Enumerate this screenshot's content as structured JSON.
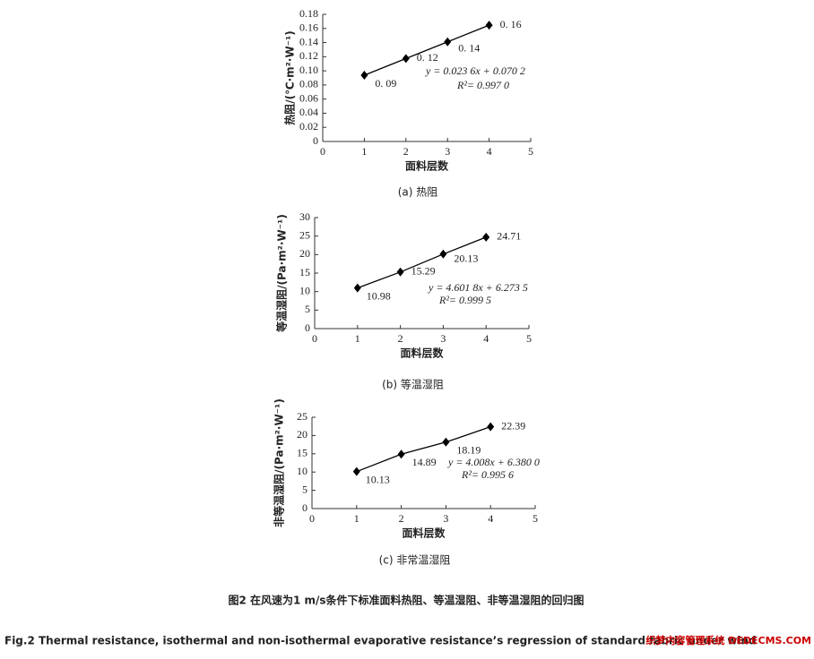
{
  "chart_data": [
    {
      "type": "line",
      "y_label": "热阻/(℃·m²·W⁻¹)",
      "x_label": "面料层数",
      "caption": "(a) 热阻",
      "x": [
        1,
        2,
        3,
        4
      ],
      "series": [
        {
          "name": "热阻",
          "color": "#000000",
          "values": [
            0.0938,
            0.1174,
            0.141,
            0.1646
          ],
          "value_labels": [
            "0. 09",
            "0. 12",
            "0. 14",
            "0. 16"
          ]
        }
      ],
      "xlim": [
        0,
        5
      ],
      "xticks": [
        0,
        1,
        2,
        3,
        4,
        5
      ],
      "ylim": [
        0,
        0.18
      ],
      "yticks": [
        0,
        0.02,
        0.04,
        0.06,
        0.08,
        {
          "value": 0.1,
          "label": "0.10"
        },
        0.12,
        0.14,
        0.16,
        0.18
      ],
      "equation": "y = 0.023 6x + 0.070 2",
      "r_squared": "R²= 0.997 0"
    },
    {
      "type": "line",
      "y_label": "等温湿阻/(Pa·m²·W⁻¹)",
      "x_label": "面料层数",
      "caption": "(b) 等温湿阻",
      "x": [
        1,
        2,
        3,
        4
      ],
      "series": [
        {
          "name": "等温湿阻",
          "color": "#000000",
          "values": [
            10.98,
            15.29,
            20.13,
            24.71
          ]
        }
      ],
      "xlim": [
        0,
        5
      ],
      "xticks": [
        0,
        1,
        2,
        3,
        4,
        5
      ],
      "ylim": [
        0,
        30
      ],
      "yticks": [
        0,
        5,
        10,
        15,
        20,
        25,
        30
      ],
      "equation": "y = 4.601 8x + 6.273 5",
      "r_squared": "R²= 0.999 5"
    },
    {
      "type": "line",
      "y_label": "非等温湿阻/(Pa·m²·W⁻¹)",
      "x_label": "面料层数",
      "caption": "(c) 非常温湿阻",
      "x": [
        1,
        2,
        3,
        4
      ],
      "series": [
        {
          "name": "非等温湿阻",
          "color": "#000000",
          "values": [
            10.13,
            14.89,
            18.19,
            22.39
          ]
        }
      ],
      "xlim": [
        0,
        5
      ],
      "xticks": [
        0,
        1,
        2,
        3,
        4,
        5
      ],
      "ylim": [
        0,
        25
      ],
      "yticks": [
        0,
        5,
        10,
        15,
        20,
        25
      ],
      "equation": "y = 4.008x + 6.380 0",
      "r_squared": "R²= 0.995 6"
    }
  ],
  "figure_caption_cn": "图2 在风速为1 m/s条件下标准面料热阻、等温湿阻、非等温湿阻的回归图",
  "figure_caption_en": "Fig.2 Thermal resistance, isothermal and non-isothermal evaporative resistance’s regression of standard fabric under wind",
  "watermark": "织梦内容管理系统 DEDECMS.COM"
}
